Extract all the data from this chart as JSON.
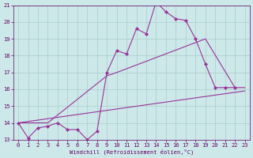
{
  "xlabel": "Windchill (Refroidissement éolien,°C)",
  "bg_color": "#cce8e8",
  "line_color": "#993399",
  "xlim": [
    -0.5,
    23.5
  ],
  "ylim": [
    13,
    21
  ],
  "yticks": [
    13,
    14,
    15,
    16,
    17,
    18,
    19,
    20,
    21
  ],
  "xticks": [
    0,
    1,
    2,
    3,
    4,
    5,
    6,
    7,
    8,
    9,
    10,
    11,
    12,
    13,
    14,
    15,
    16,
    17,
    18,
    19,
    20,
    21,
    22,
    23
  ],
  "series0_x": [
    0,
    1,
    2,
    3,
    4,
    5,
    6,
    7,
    8,
    9,
    10,
    11,
    12,
    13,
    14,
    15,
    16,
    17,
    18,
    19,
    20,
    21,
    22
  ],
  "series0_y": [
    14.0,
    13.1,
    13.7,
    13.8,
    14.0,
    13.6,
    13.6,
    13.0,
    13.5,
    17.0,
    18.3,
    18.1,
    19.6,
    19.3,
    21.2,
    20.6,
    20.2,
    20.1,
    19.0,
    17.5,
    16.1,
    16.1,
    16.1
  ],
  "series1_x": [
    0,
    3,
    9,
    10,
    19,
    22,
    23
  ],
  "series1_y": [
    14.0,
    14.0,
    16.8,
    17.0,
    19.0,
    16.1,
    16.1
  ],
  "series2_x": [
    0,
    23
  ],
  "series2_y": [
    14.0,
    15.9
  ]
}
